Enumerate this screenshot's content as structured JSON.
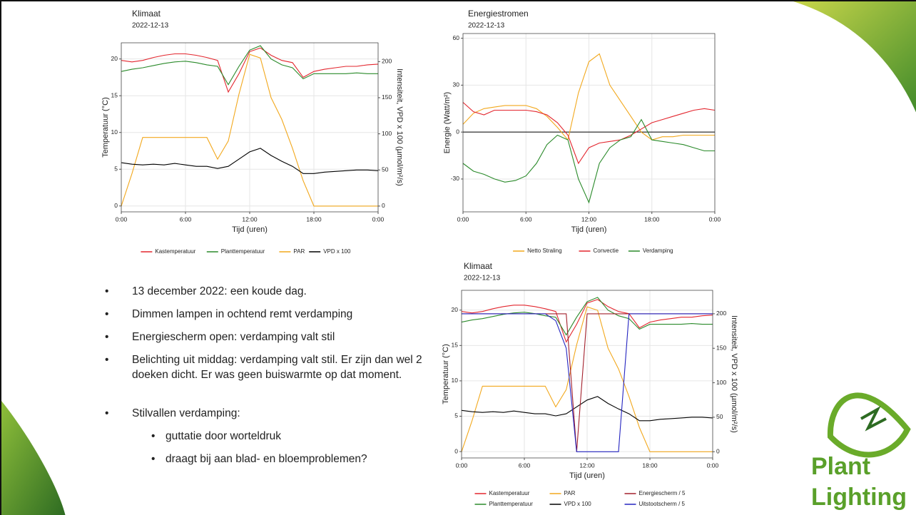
{
  "chart_data": [
    {
      "type": "line",
      "title": "Klimaat",
      "subtitle": "2022-12-13",
      "xlabel": "Tijd (uren)",
      "ylabel": "Temperatuur (°C)",
      "y2label": "Intensiteit, VPD x 100 (µmol/m²/s)",
      "x": [
        0,
        1,
        2,
        3,
        4,
        5,
        6,
        7,
        8,
        9,
        10,
        11,
        12,
        13,
        14,
        15,
        16,
        17,
        18,
        19,
        20,
        21,
        22,
        23,
        24
      ],
      "xlim": [
        0,
        24
      ],
      "xticks": [
        {
          "value": 0,
          "label": "0:00"
        },
        {
          "value": 6,
          "label": "6:00"
        },
        {
          "value": 12,
          "label": "12:00"
        },
        {
          "value": 18,
          "label": "18:00"
        },
        {
          "value": 24,
          "label": "0:00"
        }
      ],
      "ylim": [
        -0.8,
        22.2
      ],
      "yticks": [
        0,
        5,
        10,
        15,
        20
      ],
      "y2lim": [
        -8,
        226
      ],
      "y2ticks": [
        0,
        50,
        100,
        150,
        200
      ],
      "grid": true,
      "legend": "bottom",
      "legend_rows": 1,
      "series": [
        {
          "name": "Kastemperatuur",
          "color": "#e3262e",
          "values": [
            19.8,
            19.6,
            19.8,
            20.2,
            20.5,
            20.7,
            20.7,
            20.5,
            20.2,
            19.8,
            15.5,
            18,
            21,
            21.5,
            20.5,
            19.8,
            19.5,
            17.5,
            18.3,
            18.6,
            18.8,
            19,
            19,
            19.2,
            19.3
          ]
        },
        {
          "name": "Planttemperatuur",
          "color": "#2a8a2a",
          "values": [
            18.3,
            18.6,
            18.8,
            19.1,
            19.4,
            19.6,
            19.7,
            19.5,
            19.2,
            19,
            16.5,
            19,
            21.2,
            21.8,
            20,
            19.2,
            18.8,
            17.3,
            18,
            18,
            18,
            18,
            18.1,
            18,
            18
          ]
        },
        {
          "name": "PAR",
          "color": "#f2a81d",
          "axis": "y2",
          "values": [
            0,
            45,
            95,
            95,
            95,
            95,
            95,
            95,
            95,
            65,
            90,
            155,
            210,
            205,
            150,
            120,
            80,
            35,
            0,
            0,
            0,
            0,
            0,
            0,
            0
          ]
        },
        {
          "name": "VPD x 100",
          "color": "#000000",
          "axis": "y2",
          "values": [
            60,
            58,
            57,
            58,
            57,
            59,
            57,
            55,
            55,
            52,
            55,
            65,
            75,
            80,
            70,
            62,
            55,
            45,
            45,
            47,
            48,
            49,
            50,
            50,
            49
          ]
        }
      ]
    },
    {
      "type": "line",
      "title": "Energiestromen",
      "subtitle": "2022-12-13",
      "xlabel": "Tijd (uren)",
      "ylabel": "Energie (Watt/m²)",
      "x": [
        0,
        1,
        2,
        3,
        4,
        5,
        6,
        7,
        8,
        9,
        10,
        11,
        12,
        13,
        14,
        15,
        16,
        17,
        18,
        19,
        20,
        21,
        22,
        23,
        24
      ],
      "xlim": [
        0,
        24
      ],
      "xticks": [
        {
          "value": 0,
          "label": "0:00"
        },
        {
          "value": 6,
          "label": "6:00"
        },
        {
          "value": 12,
          "label": "12:00"
        },
        {
          "value": 18,
          "label": "18:00"
        },
        {
          "value": 24,
          "label": "0:00"
        }
      ],
      "ylim": [
        -51,
        63
      ],
      "yticks": [
        -30,
        0,
        30,
        60
      ],
      "grid": true,
      "hline": 0,
      "legend": "bottom",
      "legend_rows": 1,
      "series": [
        {
          "name": "Netto Straling",
          "color": "#f2a81d",
          "values": [
            5,
            12,
            15,
            16,
            17,
            17,
            17,
            15,
            10,
            3,
            -5,
            25,
            45,
            50,
            30,
            20,
            10,
            0,
            -5,
            -3,
            -3,
            -2,
            -2,
            -2,
            -2
          ]
        },
        {
          "name": "Convectie",
          "color": "#e3262e",
          "values": [
            19,
            13,
            11,
            14,
            14,
            14,
            14,
            13,
            11,
            6,
            -2,
            -20,
            -10,
            -7,
            -6,
            -5,
            -2,
            2,
            6,
            8,
            10,
            12,
            14,
            15,
            14
          ]
        },
        {
          "name": "Verdamping",
          "color": "#2a8a2a",
          "values": [
            -20,
            -25,
            -27,
            -30,
            -32,
            -31,
            -28,
            -20,
            -8,
            -2,
            -5,
            -30,
            -45,
            -20,
            -10,
            -5,
            -3,
            8,
            -5,
            -6,
            -7,
            -8,
            -10,
            -12,
            -12
          ]
        }
      ]
    },
    {
      "type": "line",
      "title": "Klimaat",
      "subtitle": "2022-12-13",
      "xlabel": "Tijd (uren)",
      "ylabel": "Temperatuur (°C)",
      "y2label": "Intensiteit, VPD x 100 (µmol/m²/s)",
      "x": [
        0,
        1,
        2,
        3,
        4,
        5,
        6,
        7,
        8,
        9,
        10,
        11,
        12,
        13,
        14,
        15,
        16,
        17,
        18,
        19,
        20,
        21,
        22,
        23,
        24
      ],
      "xlim": [
        0,
        24
      ],
      "xticks": [
        {
          "value": 0,
          "label": "0:00"
        },
        {
          "value": 6,
          "label": "6:00"
        },
        {
          "value": 12,
          "label": "12:00"
        },
        {
          "value": 18,
          "label": "18:00"
        },
        {
          "value": 24,
          "label": "0:00"
        }
      ],
      "ylim": [
        -0.9,
        22.8
      ],
      "yticks": [
        0,
        5,
        10,
        15,
        20
      ],
      "y2lim": [
        -9,
        234
      ],
      "y2ticks": [
        0,
        50,
        100,
        150,
        200
      ],
      "grid": true,
      "legend": "bottom",
      "legend_rows": 2,
      "series": [
        {
          "name": "Kastemperatuur",
          "color": "#e3262e",
          "values": [
            19.8,
            19.6,
            19.8,
            20.2,
            20.5,
            20.7,
            20.7,
            20.5,
            20.2,
            19.8,
            15.5,
            18,
            21,
            21.5,
            20.5,
            19.8,
            19.5,
            17.5,
            18.3,
            18.6,
            18.8,
            19,
            19,
            19.2,
            19.3
          ]
        },
        {
          "name": "Planttemperatuur",
          "color": "#2a8a2a",
          "values": [
            18.3,
            18.6,
            18.8,
            19.1,
            19.4,
            19.6,
            19.7,
            19.5,
            19.2,
            19,
            16.5,
            19,
            21.2,
            21.8,
            20,
            19.2,
            18.8,
            17.3,
            18,
            18,
            18,
            18,
            18.1,
            18,
            18
          ]
        },
        {
          "name": "PAR",
          "color": "#f2a81d",
          "axis": "y2",
          "values": [
            0,
            45,
            95,
            95,
            95,
            95,
            95,
            95,
            95,
            65,
            90,
            155,
            210,
            205,
            150,
            120,
            80,
            35,
            0,
            0,
            0,
            0,
            0,
            0,
            0
          ]
        },
        {
          "name": "VPD x 100",
          "color": "#000000",
          "axis": "y2",
          "values": [
            60,
            58,
            57,
            58,
            57,
            59,
            57,
            55,
            55,
            52,
            55,
            65,
            75,
            80,
            70,
            62,
            55,
            45,
            45,
            47,
            48,
            49,
            50,
            50,
            49
          ]
        },
        {
          "name": "Energiescherm / 5",
          "color": "#a3202c",
          "axis": "y2",
          "values": [
            200,
            200,
            200,
            200,
            200,
            200,
            200,
            200,
            200,
            200,
            200,
            0,
            200,
            200,
            200,
            200,
            200,
            200,
            200,
            200,
            200,
            200,
            200,
            200,
            200
          ]
        },
        {
          "name": "Uitstootscherm / 5",
          "color": "#2424c0",
          "axis": "y2",
          "values": [
            200,
            200,
            200,
            200,
            200,
            200,
            200,
            200,
            200,
            190,
            150,
            0,
            0,
            0,
            0,
            0,
            200,
            200,
            200,
            200,
            200,
            200,
            200,
            200,
            200
          ]
        }
      ]
    }
  ],
  "bullets": [
    {
      "text": "13 december 2022: een koude dag."
    },
    {
      "text": "Dimmen lampen in ochtend remt verdamping"
    },
    {
      "text": "Energiescherm open: verdamping valt stil"
    },
    {
      "text": "Belichting uit middag: verdamping valt stil. Er zijn dan wel 2 doeken dicht. Er was geen buiswarmte op dat moment."
    },
    {
      "text": "Stilvallen verdamping:",
      "sub": [
        "guttatie door worteldruk",
        "draagt bij aan blad- en bloemproblemen?"
      ]
    }
  ],
  "logo": {
    "lines": [
      "Plant",
      "Lighting"
    ]
  }
}
